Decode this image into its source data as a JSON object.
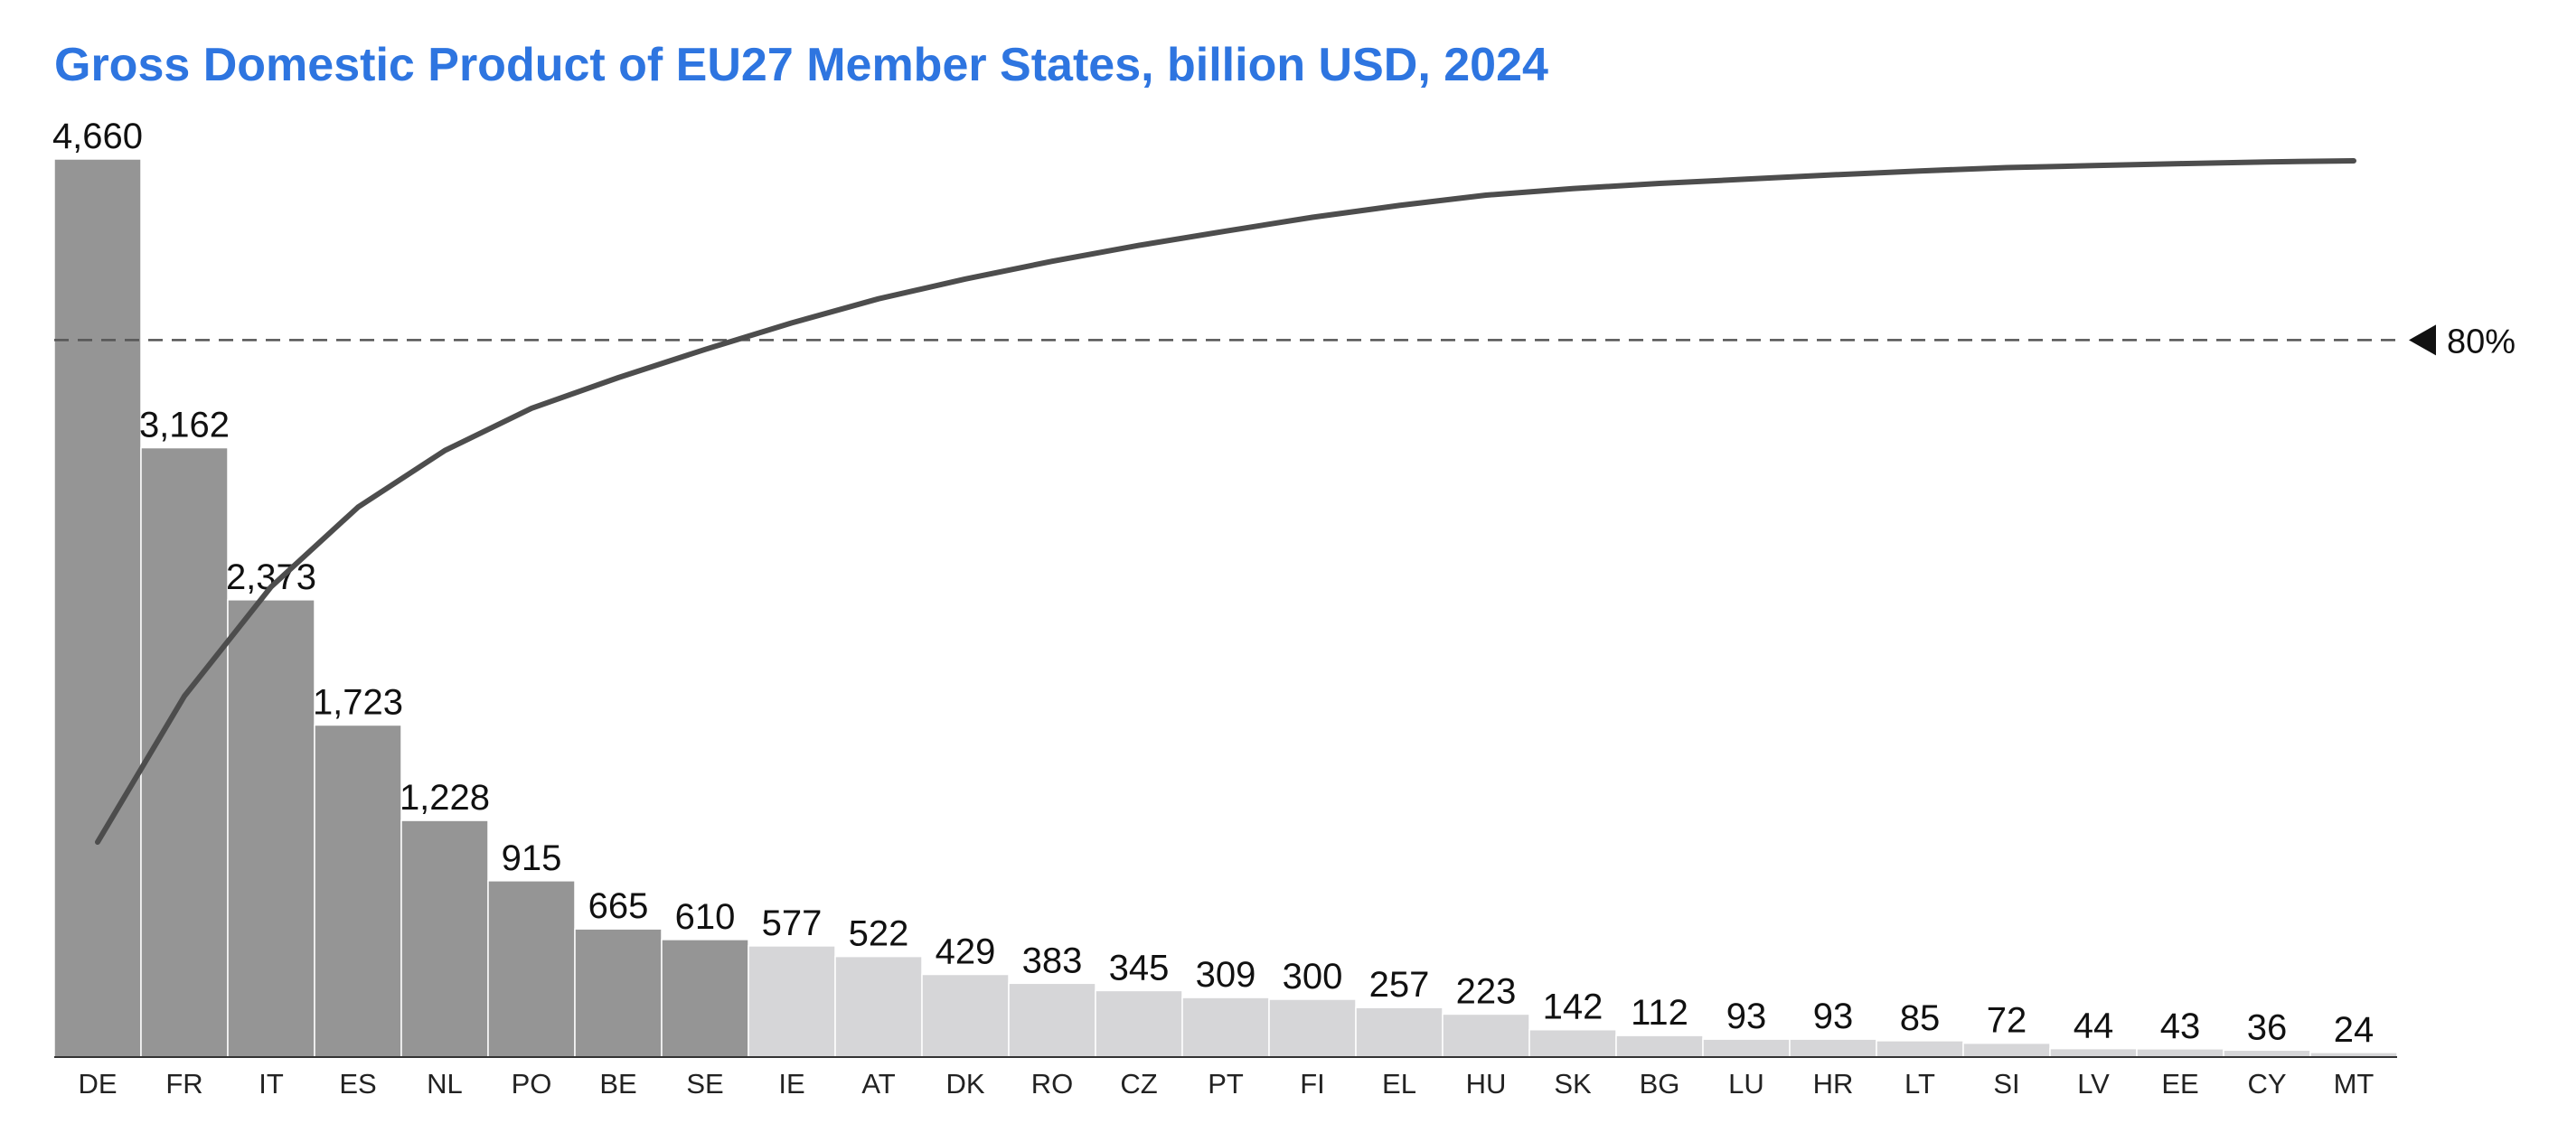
{
  "chart_data": {
    "type": "bar",
    "title": "Gross Domestic Product of EU27 Member States, billion USD, 2024",
    "xlabel": "",
    "ylabel": "",
    "ylim": [
      0,
      4660
    ],
    "categories": [
      "DE",
      "FR",
      "IT",
      "ES",
      "NL",
      "PO",
      "BE",
      "SE",
      "IE",
      "AT",
      "DK",
      "RO",
      "CZ",
      "PT",
      "FI",
      "EL",
      "HU",
      "SK",
      "BG",
      "LU",
      "HR",
      "LT",
      "SI",
      "LV",
      "EE",
      "CY",
      "MT"
    ],
    "values": [
      4660,
      3162,
      2373,
      1723,
      1228,
      915,
      665,
      610,
      577,
      522,
      429,
      383,
      345,
      309,
      300,
      257,
      223,
      142,
      112,
      93,
      93,
      85,
      72,
      44,
      43,
      36,
      24
    ],
    "value_labels": [
      "4,660",
      "3,162",
      "2,373",
      "1,723",
      "1,228",
      "915",
      "665",
      "610",
      "577",
      "522",
      "429",
      "383",
      "345",
      "309",
      "300",
      "257",
      "223",
      "142",
      "112",
      "93",
      "93",
      "85",
      "72",
      "44",
      "43",
      "36",
      "24"
    ],
    "highlight_count": 8,
    "cumulative_line": true,
    "reference_line": {
      "value": 0.8,
      "label": "80%"
    },
    "grid": false,
    "legend": "none",
    "colors": {
      "highlight_bar": "#959595",
      "other_bar": "#d6d6d8",
      "line": "#4d4d4d",
      "reference": "#555555",
      "title": "#2e75e0"
    }
  }
}
